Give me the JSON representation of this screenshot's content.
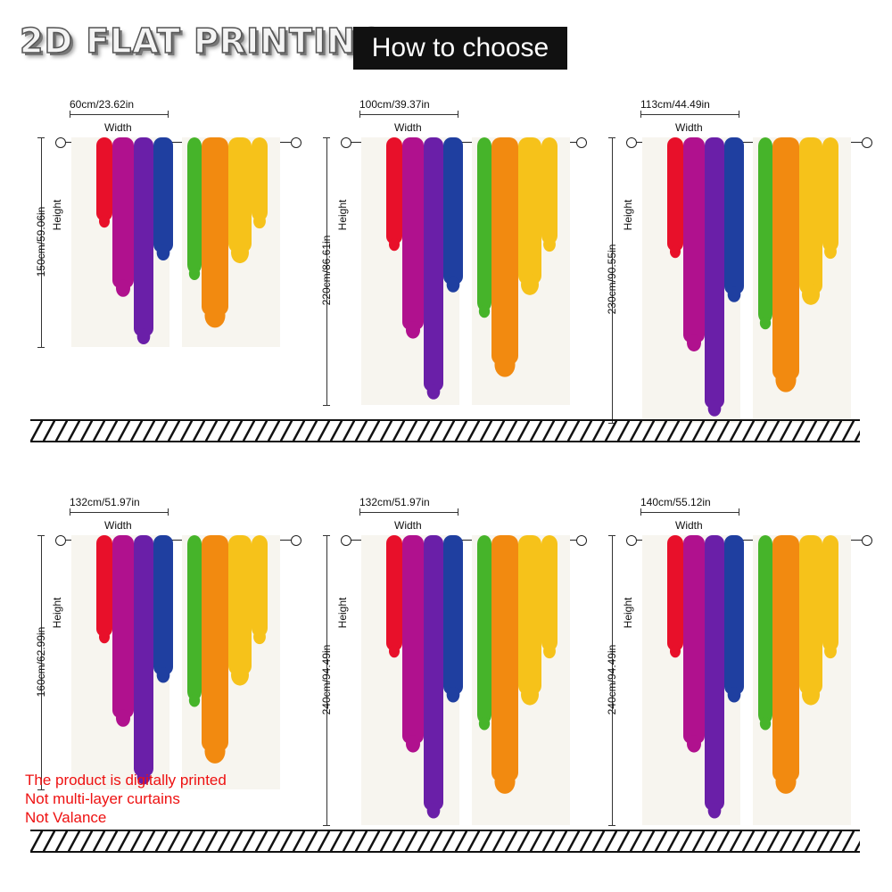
{
  "header": {
    "title": "2D FLAT PRINTING",
    "badge": "How to choose"
  },
  "labels": {
    "width": "Width",
    "height": "Height"
  },
  "sizes": [
    {
      "width": "60cm/23.62in",
      "height": "150cm/59.06in"
    },
    {
      "width": "100cm/39.37in",
      "height": "220cm/86.61in"
    },
    {
      "width": "113cm/44.49in",
      "height": "230cm/90.55in"
    },
    {
      "width": "132cm/51.97in",
      "height": "160cm/62.99in"
    },
    {
      "width": "132cm/51.97in",
      "height": "240cm/94.49in"
    },
    {
      "width": "140cm/55.12in",
      "height": "240cm/94.49in"
    }
  ],
  "notes": [
    "The product is digitally printed",
    "Not multi-layer curtains",
    "Not Valance"
  ],
  "colors": {
    "red": "#e8102a",
    "magenta": "#b0118e",
    "purple": "#6a1fa8",
    "blue": "#1f3fa0",
    "green": "#46b42a",
    "orange": "#f28a10",
    "yellow": "#f6c21a",
    "note": "#e11111"
  },
  "icons": {
    "ring": "curtain-ring-icon"
  }
}
